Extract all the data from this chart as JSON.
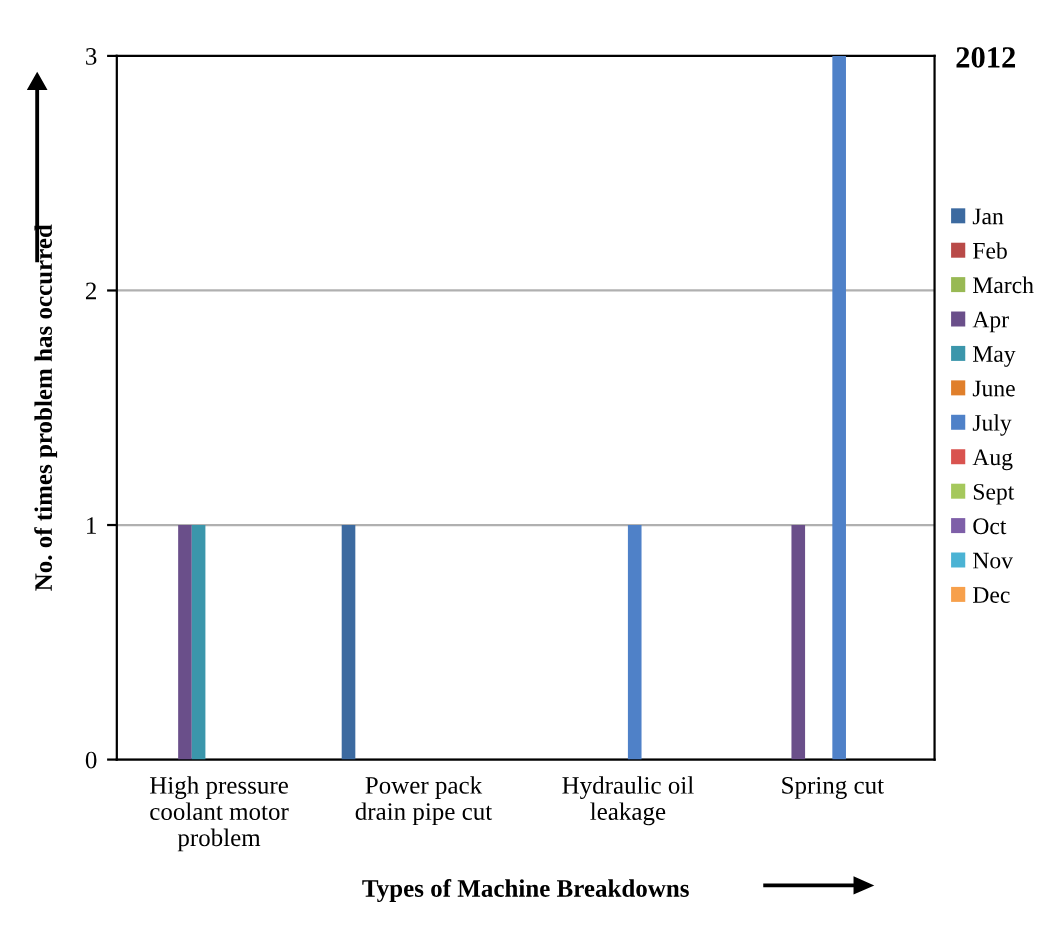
{
  "chart_data": {
    "type": "bar",
    "title": "2012",
    "xlabel": "Types of Machine Breakdowns",
    "ylabel": "No. of times problem has occurred",
    "categories": [
      "High pressure coolant motor problem",
      "Power pack drain pipe cut",
      "Hydraulic oil leakage",
      "Spring cut"
    ],
    "series": [
      {
        "name": "Jan",
        "color": "#3c6aa0",
        "values": [
          0,
          1,
          0,
          0
        ]
      },
      {
        "name": "Feb",
        "color": "#b94a48",
        "values": [
          0,
          0,
          0,
          0
        ]
      },
      {
        "name": "March",
        "color": "#98b954",
        "values": [
          0,
          0,
          0,
          0
        ]
      },
      {
        "name": "Apr",
        "color": "#6a4f8a",
        "values": [
          1,
          0,
          0,
          1
        ]
      },
      {
        "name": "May",
        "color": "#3b96ab",
        "values": [
          1,
          0,
          0,
          0
        ]
      },
      {
        "name": "June",
        "color": "#e07f2b",
        "values": [
          0,
          0,
          0,
          0
        ]
      },
      {
        "name": "July",
        "color": "#4f81c8",
        "values": [
          0,
          0,
          1,
          3
        ]
      },
      {
        "name": "Aug",
        "color": "#d9534f",
        "values": [
          0,
          0,
          0,
          0
        ]
      },
      {
        "name": "Sept",
        "color": "#a5c85c",
        "values": [
          0,
          0,
          0,
          0
        ]
      },
      {
        "name": "Oct",
        "color": "#7e5fa8",
        "values": [
          0,
          0,
          0,
          0
        ]
      },
      {
        "name": "Nov",
        "color": "#4bb3d4",
        "values": [
          0,
          0,
          0,
          0
        ]
      },
      {
        "name": "Dec",
        "color": "#f7a04b",
        "values": [
          0,
          0,
          0,
          0
        ]
      }
    ],
    "ylim": [
      0,
      3
    ],
    "yticks": [
      0,
      1,
      2,
      3
    ],
    "grid": "y",
    "legend": "right"
  }
}
